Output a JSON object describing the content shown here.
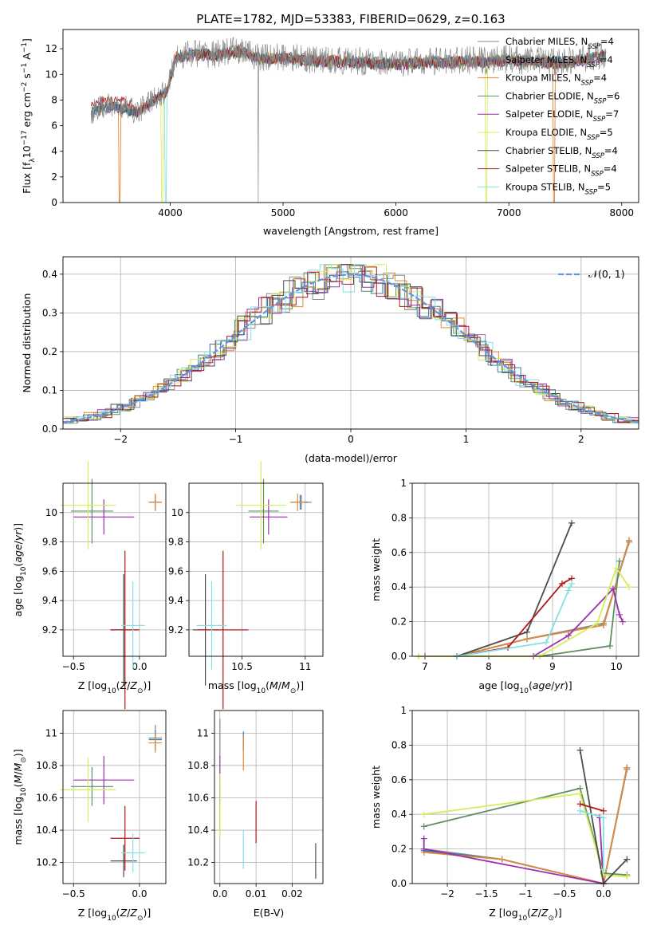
{
  "figure_title": "PLATE=1782, MJD=53383, FIBERID=0629, z=0.163",
  "colors": {
    "Chabrier MILES": "#8a8a8a",
    "Salpeter MILES": "#2e7fb0",
    "Kroupa MILES": "#e08a3a",
    "Chabrier ELODIE": "#5f8f62",
    "Salpeter ELODIE": "#9b2fae",
    "Kroupa ELODIE": "#d8ec5a",
    "Chabrier STELIB": "#4d4d4d",
    "Salpeter STELIB": "#b01818",
    "Kroupa STELIB": "#86e0e3",
    "normal_curve": "#6494e8",
    "grid": "#b0b0b0"
  },
  "chart_data": [
    {
      "id": "spectrum",
      "type": "line",
      "title": "PLATE=1782, MJD=53383, FIBERID=0629, z=0.163",
      "xlabel": "wavelength [Angstrom, rest frame]",
      "ylabel": "Flux [f_λ 10^-17 erg cm^-2 s^-1 A^-1]",
      "xlim": [
        3050,
        8150
      ],
      "ylim": [
        0,
        13.5
      ],
      "xticks": [
        4000,
        5000,
        6000,
        7000,
        8000
      ],
      "yticks": [
        0,
        2,
        4,
        6,
        8,
        10,
        12
      ],
      "grid": false,
      "legend_position": "right",
      "legend": [
        {
          "base": "Chabrier MILES, N",
          "sub": "SSP",
          "tail": "=4"
        },
        {
          "base": "Salpeter MILES, N",
          "sub": "SSP",
          "tail": "=4"
        },
        {
          "base": "Kroupa MILES, N",
          "sub": "SSP",
          "tail": "=4"
        },
        {
          "base": "Chabrier ELODIE, N",
          "sub": "SSP",
          "tail": "=6"
        },
        {
          "base": "Salpeter ELODIE, N",
          "sub": "SSP",
          "tail": "=7"
        },
        {
          "base": "Kroupa ELODIE, N",
          "sub": "SSP",
          "tail": "=5"
        },
        {
          "base": "Chabrier STELIB, N",
          "sub": "SSP",
          "tail": "=4"
        },
        {
          "base": "Salpeter STELIB, N",
          "sub": "SSP",
          "tail": "=4"
        },
        {
          "base": "Kroupa STELIB, N",
          "sub": "SSP",
          "tail": "=5"
        }
      ],
      "continuum": [
        [
          3300,
          7.0
        ],
        [
          3400,
          7.4
        ],
        [
          3500,
          7.5
        ],
        [
          3600,
          7.3
        ],
        [
          3700,
          7.0
        ],
        [
          3800,
          7.6
        ],
        [
          3900,
          8.3
        ],
        [
          3970,
          8.6
        ],
        [
          4050,
          11.3
        ],
        [
          4200,
          11.6
        ],
        [
          4400,
          11.5
        ],
        [
          4600,
          11.8
        ],
        [
          4800,
          11.2
        ],
        [
          5000,
          11.3
        ],
        [
          5200,
          11.1
        ],
        [
          5500,
          11.0
        ],
        [
          5800,
          10.9
        ],
        [
          6000,
          10.8
        ],
        [
          6200,
          10.9
        ],
        [
          6500,
          11.0
        ],
        [
          6800,
          11.0
        ],
        [
          7000,
          11.1
        ],
        [
          7200,
          11.0
        ],
        [
          7500,
          10.9
        ],
        [
          7700,
          11.2
        ],
        [
          7850,
          11.5
        ]
      ],
      "dips": [
        {
          "x": 3550,
          "y": 0,
          "series": "Kroupa MILES"
        },
        {
          "x": 3930,
          "y": 0,
          "series": "Kroupa ELODIE"
        },
        {
          "x": 3960,
          "y": 0,
          "series": "Kroupa STELIB"
        },
        {
          "x": 4780,
          "y": 0,
          "series": "Chabrier MILES"
        },
        {
          "x": 6800,
          "y": 0,
          "series": "Kroupa ELODIE"
        },
        {
          "x": 7400,
          "y": 0,
          "series": "Kroupa MILES"
        }
      ]
    },
    {
      "id": "residuals",
      "type": "line",
      "xlabel": "(data-model)/error",
      "ylabel": "Normed distribution",
      "xlim": [
        -2.5,
        2.5
      ],
      "ylim": [
        0,
        0.445
      ],
      "xticks": [
        -2,
        -1,
        0,
        1,
        2
      ],
      "yticks": [
        0.0,
        0.1,
        0.2,
        0.3,
        0.4
      ],
      "grid": true,
      "legend_position": "top-right",
      "legend": [
        "𝒩(0, 1)"
      ],
      "bin_width": 0.1
    },
    {
      "id": "age_vs_Z",
      "type": "scatter",
      "xlabel": "Z [log10(Z/Z⊙)]",
      "ylabel": "age [log10(age/yr)]",
      "xlim": [
        -0.58,
        0.2
      ],
      "ylim": [
        9.02,
        10.2
      ],
      "xticks": [
        -0.5,
        0.0
      ],
      "yticks": [
        9.2,
        9.4,
        9.6,
        9.8,
        10.0
      ],
      "grid": true,
      "points": [
        {
          "series": "Chabrier MILES",
          "x": 0.12,
          "y": 10.07,
          "xerr": 0.05,
          "yerr": 0.05
        },
        {
          "series": "Salpeter MILES",
          "x": 0.12,
          "y": 10.07,
          "xerr": 0.05,
          "yerr": 0.05
        },
        {
          "series": "Kroupa MILES",
          "x": 0.12,
          "y": 10.07,
          "xerr": 0.05,
          "yerr": 0.06
        },
        {
          "series": "Chabrier ELODIE",
          "x": -0.36,
          "y": 10.01,
          "xerr": 0.16,
          "yerr": 0.22
        },
        {
          "series": "Salpeter ELODIE",
          "x": -0.27,
          "y": 9.97,
          "xerr": 0.23,
          "yerr": 0.12
        },
        {
          "series": "Kroupa ELODIE",
          "x": -0.39,
          "y": 10.05,
          "xerr": 0.21,
          "yerr": 0.3
        },
        {
          "series": "Chabrier STELIB",
          "x": -0.12,
          "y": 9.2,
          "xerr": 0.1,
          "yerr": 0.38
        },
        {
          "series": "Salpeter STELIB",
          "x": -0.11,
          "y": 9.2,
          "xerr": 0.11,
          "yerr": 0.54
        },
        {
          "series": "Kroupa STELIB",
          "x": -0.05,
          "y": 9.23,
          "xerr": 0.09,
          "yerr": 0.3
        }
      ]
    },
    {
      "id": "age_vs_mass",
      "type": "scatter",
      "xlabel": "mass [log10(M/M⊙)]",
      "ylabel": "",
      "xlim": [
        10.08,
        11.14
      ],
      "ylim": [
        9.02,
        10.2
      ],
      "xticks": [
        10.5,
        11.0
      ],
      "yticks": [
        9.2,
        9.4,
        9.6,
        9.8,
        10.0
      ],
      "grid": true,
      "points": [
        {
          "series": "Chabrier MILES",
          "x": 10.97,
          "y": 10.07,
          "xerr": 0.08,
          "yerr": 0.05
        },
        {
          "series": "Salpeter MILES",
          "x": 10.96,
          "y": 10.07,
          "xerr": 0.06,
          "yerr": 0.05
        },
        {
          "series": "Kroupa MILES",
          "x": 10.94,
          "y": 10.07,
          "xerr": 0.06,
          "yerr": 0.06
        },
        {
          "series": "Chabrier ELODIE",
          "x": 10.67,
          "y": 10.01,
          "xerr": 0.12,
          "yerr": 0.22
        },
        {
          "series": "Salpeter ELODIE",
          "x": 10.71,
          "y": 9.97,
          "xerr": 0.15,
          "yerr": 0.12
        },
        {
          "series": "Kroupa ELODIE",
          "x": 10.65,
          "y": 10.05,
          "xerr": 0.2,
          "yerr": 0.3
        },
        {
          "series": "Chabrier STELIB",
          "x": 10.21,
          "y": 9.2,
          "xerr": 0.1,
          "yerr": 0.38
        },
        {
          "series": "Salpeter STELIB",
          "x": 10.35,
          "y": 9.2,
          "xerr": 0.2,
          "yerr": 0.54
        },
        {
          "series": "Kroupa STELIB",
          "x": 10.26,
          "y": 9.23,
          "xerr": 0.12,
          "yerr": 0.3
        }
      ]
    },
    {
      "id": "mass_weight_vs_age",
      "type": "line",
      "xlabel": "age [log10(age/yr)]",
      "ylabel": "mass weight",
      "xlim": [
        6.8,
        10.35
      ],
      "ylim": [
        0,
        1.0
      ],
      "xticks": [
        7,
        8,
        9,
        10
      ],
      "yticks": [
        0.0,
        0.2,
        0.4,
        0.6,
        0.8,
        1.0
      ],
      "grid": true,
      "series": [
        {
          "name": "Chabrier MILES",
          "x": [
            7.5,
            8.6,
            9.8,
            10.2
          ],
          "y": [
            0.0,
            0.1,
            0.19,
            0.66
          ]
        },
        {
          "name": "Salpeter MILES",
          "x": [
            7.5,
            8.6,
            9.8,
            10.2
          ],
          "y": [
            0.0,
            0.1,
            0.18,
            0.67
          ]
        },
        {
          "name": "Kroupa MILES",
          "x": [
            7.5,
            8.6,
            9.8,
            10.2
          ],
          "y": [
            0.0,
            0.1,
            0.18,
            0.67
          ]
        },
        {
          "name": "Chabrier ELODIE",
          "x": [
            6.9,
            8.8,
            9.9,
            10.05
          ],
          "y": [
            0.0,
            0.0,
            0.06,
            0.55
          ]
        },
        {
          "name": "Salpeter ELODIE",
          "x": [
            7.0,
            8.7,
            9.25,
            9.95,
            10.05,
            10.1
          ],
          "y": [
            0.0,
            0.0,
            0.12,
            0.39,
            0.24,
            0.2
          ]
        },
        {
          "name": "Kroupa ELODIE",
          "x": [
            6.9,
            8.8,
            9.7,
            10.0,
            10.2
          ],
          "y": [
            0.0,
            0.0,
            0.19,
            0.51,
            0.4
          ]
        },
        {
          "name": "Chabrier STELIB",
          "x": [
            7.5,
            8.6,
            9.3
          ],
          "y": [
            0.0,
            0.14,
            0.77
          ]
        },
        {
          "name": "Salpeter STELIB",
          "x": [
            7.5,
            8.3,
            9.15,
            9.3
          ],
          "y": [
            0.0,
            0.05,
            0.42,
            0.45
          ]
        },
        {
          "name": "Kroupa STELIB",
          "x": [
            7.5,
            8.9,
            9.25,
            9.3
          ],
          "y": [
            0.0,
            0.08,
            0.38,
            0.42
          ]
        }
      ]
    },
    {
      "id": "mass_vs_Z",
      "type": "scatter",
      "xlabel": "Z [log10(Z/Z⊙)]",
      "ylabel": "mass [log10(M/M⊙)]",
      "xlim": [
        -0.58,
        0.2
      ],
      "ylim": [
        10.07,
        11.14
      ],
      "xticks": [
        -0.5,
        0.0
      ],
      "yticks": [
        10.2,
        10.4,
        10.6,
        10.8,
        11.0
      ],
      "grid": true,
      "points": [
        {
          "series": "Chabrier MILES",
          "x": 0.12,
          "y": 10.97,
          "xerr": 0.05,
          "yerr": 0.08
        },
        {
          "series": "Salpeter MILES",
          "x": 0.12,
          "y": 10.96,
          "xerr": 0.05,
          "yerr": 0.06
        },
        {
          "series": "Kroupa MILES",
          "x": 0.12,
          "y": 10.94,
          "xerr": 0.05,
          "yerr": 0.06
        },
        {
          "series": "Chabrier ELODIE",
          "x": -0.36,
          "y": 10.67,
          "xerr": 0.16,
          "yerr": 0.12
        },
        {
          "series": "Salpeter ELODIE",
          "x": -0.27,
          "y": 10.71,
          "xerr": 0.23,
          "yerr": 0.15
        },
        {
          "series": "Kroupa ELODIE",
          "x": -0.39,
          "y": 10.65,
          "xerr": 0.21,
          "yerr": 0.2
        },
        {
          "series": "Chabrier STELIB",
          "x": -0.12,
          "y": 10.21,
          "xerr": 0.1,
          "yerr": 0.1
        },
        {
          "series": "Salpeter STELIB",
          "x": -0.11,
          "y": 10.35,
          "xerr": 0.11,
          "yerr": 0.2
        },
        {
          "series": "Kroupa STELIB",
          "x": -0.05,
          "y": 10.26,
          "xerr": 0.09,
          "yerr": 0.12
        }
      ]
    },
    {
      "id": "mass_vs_ebv",
      "type": "scatter",
      "xlabel": "E(B-V)",
      "ylabel": "",
      "xlim": [
        -0.0015,
        0.0285
      ],
      "ylim": [
        10.07,
        11.14
      ],
      "xticks": [
        0.0,
        0.01,
        0.02
      ],
      "yticks": [
        10.2,
        10.4,
        10.6,
        10.8,
        11.0
      ],
      "grid": true,
      "points": [
        {
          "series": "Chabrier MILES",
          "x": 0.0,
          "y": 10.97,
          "xerr": 0,
          "yerr": 0.12
        },
        {
          "series": "Salpeter MILES",
          "x": 0.0065,
          "y": 10.95,
          "xerr": 0,
          "yerr": 0.06
        },
        {
          "series": "Kroupa MILES",
          "x": 0.0065,
          "y": 10.88,
          "xerr": 0,
          "yerr": 0.11
        },
        {
          "series": "Chabrier ELODIE",
          "x": 0.0,
          "y": 10.55,
          "xerr": 0,
          "yerr": 0.15
        },
        {
          "series": "Salpeter ELODIE",
          "x": 0.0,
          "y": 10.71,
          "xerr": 0,
          "yerr": 0.15
        },
        {
          "series": "Kroupa ELODIE",
          "x": 0.0,
          "y": 10.55,
          "xerr": 0,
          "yerr": 0.2
        },
        {
          "series": "Chabrier STELIB",
          "x": 0.0265,
          "y": 10.21,
          "xerr": 0,
          "yerr": 0.11
        },
        {
          "series": "Salpeter STELIB",
          "x": 0.01,
          "y": 10.45,
          "xerr": 0,
          "yerr": 0.13
        },
        {
          "series": "Kroupa STELIB",
          "x": 0.0065,
          "y": 10.28,
          "xerr": 0,
          "yerr": 0.12
        }
      ]
    },
    {
      "id": "mass_weight_vs_Z",
      "type": "line",
      "xlabel": "Z [log10(Z/Z⊙)]",
      "ylabel": "mass weight",
      "xlim": [
        -2.45,
        0.45
      ],
      "ylim": [
        0,
        1.0
      ],
      "xticks": [
        -2.0,
        -1.5,
        -1.0,
        -0.5,
        0.0
      ],
      "yticks": [
        0.0,
        0.2,
        0.4,
        0.6,
        0.8,
        1.0
      ],
      "grid": true,
      "series": [
        {
          "name": "Chabrier MILES",
          "x": [
            -2.3,
            -1.3,
            0.0,
            0.3
          ],
          "y": [
            0.2,
            0.14,
            0.0,
            0.66
          ]
        },
        {
          "name": "Salpeter MILES",
          "x": [
            -2.3,
            -1.3,
            0.0,
            0.3
          ],
          "y": [
            0.19,
            0.14,
            0.0,
            0.67
          ]
        },
        {
          "name": "Kroupa MILES",
          "x": [
            -2.3,
            -1.3,
            0.0,
            0.3
          ],
          "y": [
            0.18,
            0.14,
            0.0,
            0.67
          ]
        },
        {
          "name": "Chabrier ELODIE",
          "x": [
            -2.3,
            -0.3,
            0.0,
            0.3
          ],
          "y": [
            0.33,
            0.55,
            0.06,
            0.05
          ]
        },
        {
          "name": "Salpeter ELODIE",
          "x": [
            -2.3,
            -2.3,
            0.0,
            -0.05
          ],
          "y": [
            0.26,
            0.2,
            0.0,
            0.38
          ]
        },
        {
          "name": "Kroupa ELODIE",
          "x": [
            -2.3,
            -0.3,
            0.0,
            0.3
          ],
          "y": [
            0.4,
            0.52,
            0.05,
            0.04
          ]
        },
        {
          "name": "Chabrier STELIB",
          "x": [
            -0.3,
            0.0,
            0.3
          ],
          "y": [
            0.77,
            0.0,
            0.14
          ]
        },
        {
          "name": "Salpeter STELIB",
          "x": [
            -0.3,
            0.0
          ],
          "y": [
            0.46,
            0.42
          ]
        },
        {
          "name": "Kroupa STELIB",
          "x": [
            -0.3,
            0.0,
            0.0
          ],
          "y": [
            0.42,
            0.38,
            0.08
          ]
        }
      ]
    }
  ]
}
